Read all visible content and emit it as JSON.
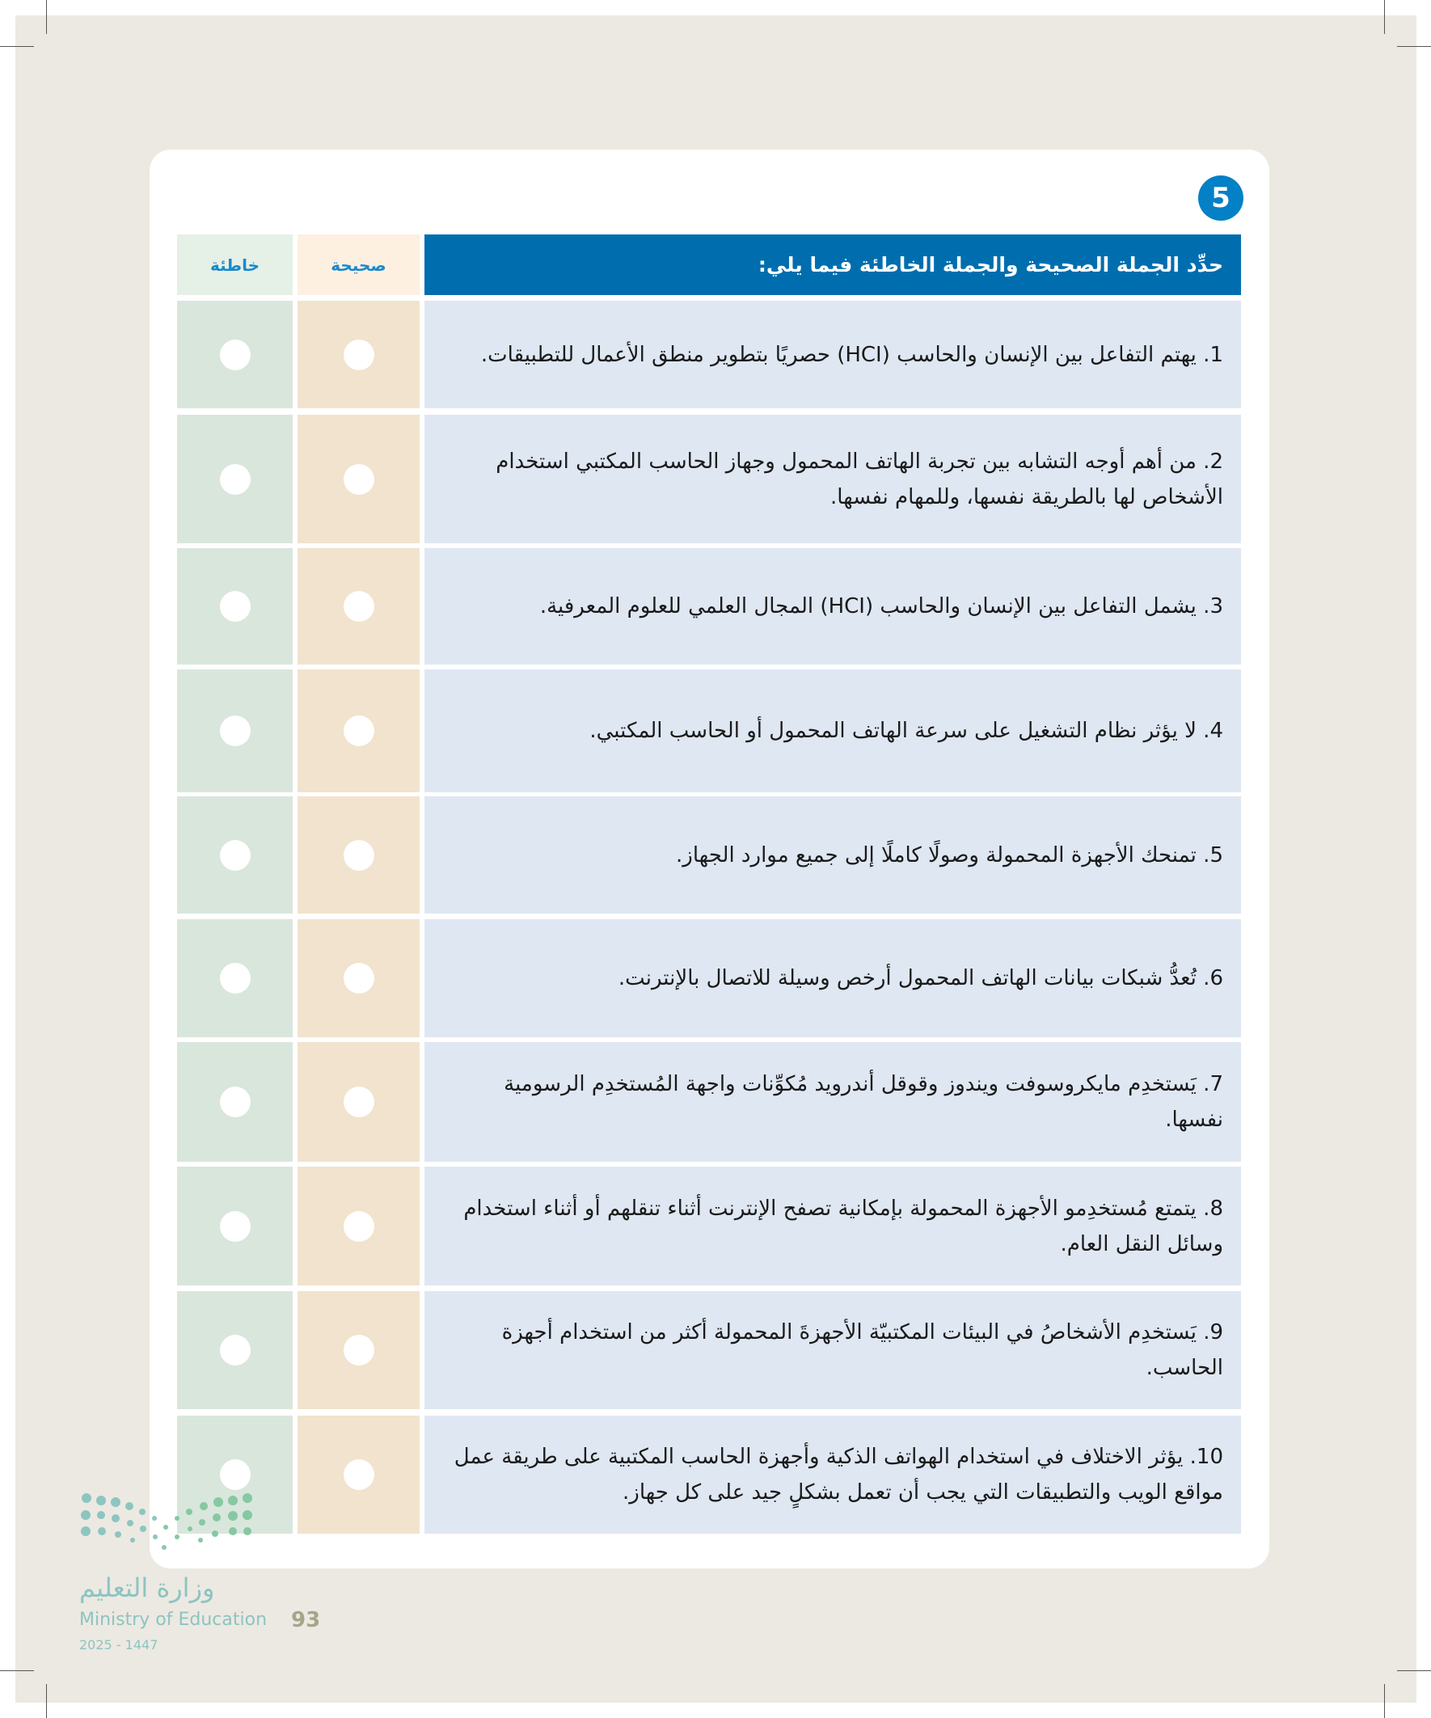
{
  "exercise_number": "5",
  "header": {
    "instruction": "حدِّد الجملة الصحيحة والجملة الخاطئة فيما يلي:",
    "true_label": "صحيحة",
    "false_label": "خاطئة"
  },
  "statements": [
    "1. يهتم التفاعل بين الإنسان والحاسب (HCI) حصريًا بتطوير منطق الأعمال للتطبيقات.",
    "2. من أهم أوجه التشابه بين تجربة الهاتف المحمول وجهاز الحاسب المكتبي استخدام الأشخاص لها بالطريقة نفسها، وللمهام نفسها.",
    "3. يشمل التفاعل بين الإنسان والحاسب (HCI) المجال العلمي للعلوم المعرفية.",
    "4. لا يؤثر نظام التشغيل على سرعة الهاتف المحمول أو الحاسب المكتبي.",
    "5. تمنحك الأجهزة المحمولة وصولًا كاملًا إلى جميع موارد الجهاز.",
    "6. تُعدُّ شبكات بيانات الهاتف المحمول أرخص وسيلة للاتصال بالإنترنت.",
    "7. يَستخدِم مايكروسوفت ويندوز وقوقل أندرويد مُكوِّنات واجهة المُستخدِم الرسومية نفسها.",
    "8. يتمتع مُستخدِمو الأجهزة المحمولة بإمكانية تصفح الإنترنت أثناء تنقلهم أو أثناء استخدام وسائل النقل العام.",
    "9. يَستخدِم الأشخاصُ في البيئات المكتبيّة الأجهزةَ المحمولة أكثر من استخدام أجهزة الحاسب.",
    "10. يؤثر الاختلاف في استخدام الهواتف الذكية وأجهزة الحاسب المكتبية على طريقة عمل مواقع الويب والتطبيقات التي يجب أن تعمل بشكلٍ جيد على كل جهاز."
  ],
  "footer": {
    "ministry_ar": "وزارة التعليم",
    "ministry_en": "Ministry of Education",
    "year": "2025 - 1447",
    "page_number": "93"
  },
  "colors": {
    "header_blue": "#006eae",
    "badge_blue": "#0480c6",
    "statement_bg": "#dfe7f2",
    "true_bg": "#f1e3cd",
    "false_bg": "#d9e6dc"
  }
}
